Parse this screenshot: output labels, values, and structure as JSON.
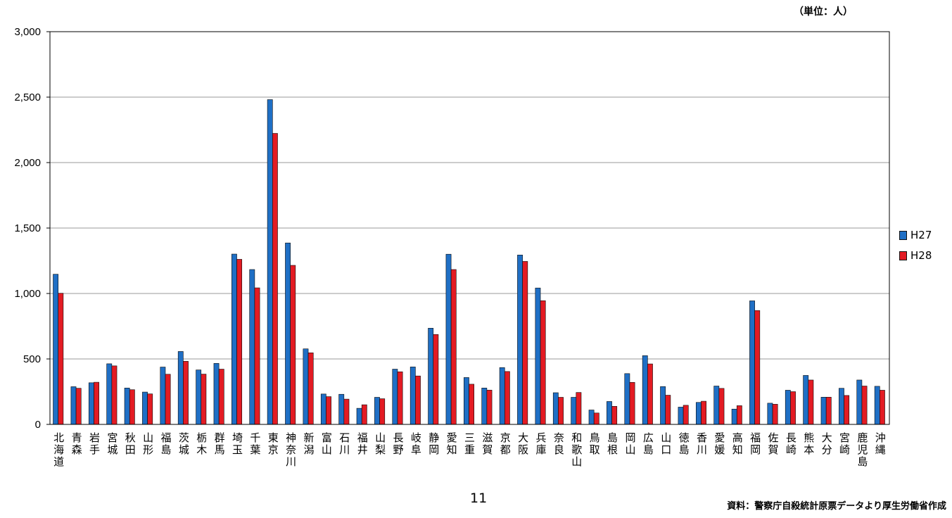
{
  "header": {
    "unit_label": "（単位：人）"
  },
  "footer": {
    "page_number": "11",
    "source": "資料：警察庁自殺統計原票データより厚生労働省作成"
  },
  "chart_data": {
    "type": "bar",
    "title": "",
    "xlabel": "",
    "ylabel": "",
    "ylim": [
      0,
      3000
    ],
    "yticks": [
      0,
      500,
      1000,
      1500,
      2000,
      2500,
      3000
    ],
    "ytick_labels": [
      "0",
      "500",
      "1,000",
      "1,500",
      "2,000",
      "2,500",
      "3,000"
    ],
    "grid": true,
    "legend_position": "right",
    "categories": [
      "北海道",
      "青森",
      "岩手",
      "宮城",
      "秋田",
      "山形",
      "福島",
      "茨城",
      "栃木",
      "群馬",
      "埼玉",
      "千葉",
      "東京",
      "神奈川",
      "新潟",
      "富山",
      "石川",
      "福井",
      "山梨",
      "長野",
      "岐阜",
      "静岡",
      "愛知",
      "三重",
      "滋賀",
      "京都",
      "大阪",
      "兵庫",
      "奈良",
      "和歌山",
      "鳥取",
      "島根",
      "岡山",
      "広島",
      "山口",
      "徳島",
      "香川",
      "愛媛",
      "高知",
      "福岡",
      "佐賀",
      "長崎",
      "熊本",
      "大分",
      "宮崎",
      "鹿児島",
      "沖縄"
    ],
    "series": [
      {
        "name": "H27",
        "color": "#1f6fc5",
        "values": [
          1147,
          288,
          318,
          463,
          278,
          247,
          438,
          557,
          416,
          466,
          1301,
          1183,
          2481,
          1386,
          577,
          232,
          230,
          123,
          207,
          422,
          439,
          735,
          1300,
          358,
          278,
          434,
          1294,
          1042,
          242,
          207,
          110,
          175,
          388,
          525,
          289,
          132,
          168,
          293,
          117,
          944,
          162,
          261,
          374,
          208,
          276,
          339,
          291
        ]
      },
      {
        "name": "H28",
        "color": "#e31b23",
        "values": [
          1002,
          276,
          322,
          447,
          265,
          233,
          383,
          482,
          384,
          422,
          1261,
          1043,
          2223,
          1215,
          547,
          212,
          193,
          150,
          196,
          402,
          370,
          687,
          1183,
          307,
          262,
          404,
          1245,
          945,
          207,
          244,
          87,
          138,
          321,
          462,
          223,
          146,
          177,
          275,
          143,
          870,
          154,
          250,
          339,
          208,
          221,
          293,
          261
        ]
      }
    ]
  }
}
